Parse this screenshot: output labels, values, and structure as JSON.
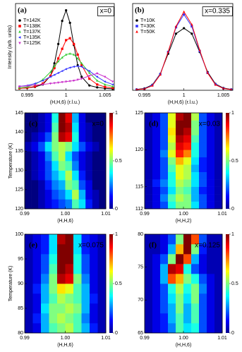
{
  "chart_data": [
    {
      "type": "scatter",
      "panel_label": "(a)",
      "annotation": "x=0",
      "xlabel": "(H,H,6) (r.l.u.)",
      "ylabel": "Intensity (arb. units)",
      "x": [
        0.994,
        0.995,
        0.996,
        0.997,
        0.998,
        0.9985,
        0.999,
        0.9995,
        1.0,
        1.0005,
        1.001,
        1.0015,
        1.002,
        1.003,
        1.004,
        1.005,
        1.006
      ],
      "xlim": [
        0.9935,
        1.0062
      ],
      "xticks": [
        0.995,
        1,
        1.005
      ],
      "ylim": [
        0,
        900
      ],
      "series": [
        {
          "name": "T=142K",
          "color": "#000000",
          "marker": "circle",
          "values": [
            20,
            25,
            35,
            60,
            150,
            280,
            480,
            720,
            830,
            700,
            470,
            260,
            140,
            50,
            30,
            20,
            15
          ]
        },
        {
          "name": "T=138K",
          "color": "#ff0000",
          "marker": "square",
          "values": [
            20,
            25,
            40,
            70,
            150,
            230,
            330,
            430,
            520,
            540,
            480,
            370,
            260,
            120,
            60,
            35,
            25
          ]
        },
        {
          "name": "T=137K",
          "color": "#33cc33",
          "marker": "triangle-up",
          "values": [
            25,
            35,
            60,
            110,
            190,
            250,
            300,
            340,
            370,
            380,
            370,
            330,
            280,
            180,
            100,
            60,
            40
          ]
        },
        {
          "name": "T=135K",
          "color": "#3333ff",
          "marker": "triangle-left",
          "values": [
            40,
            50,
            70,
            100,
            140,
            160,
            180,
            200,
            220,
            235,
            245,
            250,
            245,
            200,
            140,
            90,
            60
          ]
        },
        {
          "name": "T=125K",
          "color": "#cc33cc",
          "marker": "triangle-down",
          "values": [
            40,
            45,
            55,
            60,
            70,
            75,
            80,
            85,
            90,
            95,
            100,
            110,
            120,
            150,
            175,
            140,
            90
          ]
        }
      ]
    },
    {
      "type": "scatter",
      "panel_label": "(b)",
      "annotation": "x=0.335",
      "xlabel": "(H,H,6) (r.l.u.)",
      "x": [
        0.994,
        0.995,
        0.996,
        0.997,
        0.998,
        0.999,
        1.0,
        1.001,
        1.002,
        1.003,
        1.004,
        1.005,
        1.006
      ],
      "xlim": [
        0.9935,
        1.0062
      ],
      "xticks": [
        0.995,
        1,
        1.005
      ],
      "ylim": [
        0,
        950
      ],
      "series": [
        {
          "name": "T=10K",
          "color": "#000000",
          "marker": "circle",
          "values": [
            10,
            20,
            60,
            180,
            400,
            620,
            680,
            620,
            420,
            200,
            70,
            25,
            10
          ]
        },
        {
          "name": "T=30K",
          "color": "#3333ff",
          "marker": "square",
          "values": [
            8,
            15,
            55,
            175,
            420,
            690,
            830,
            700,
            430,
            190,
            65,
            20,
            8
          ]
        },
        {
          "name": "T=50K",
          "color": "#ff0000",
          "marker": "triangle-up",
          "values": [
            8,
            15,
            50,
            170,
            420,
            700,
            860,
            720,
            440,
            190,
            60,
            20,
            8
          ]
        }
      ]
    },
    {
      "type": "heatmap",
      "panel_label": "(c)",
      "annotation": "x=0",
      "xlabel": "(H,H,6)",
      "ylabel": "Temperature (K)",
      "xlim": [
        0.99,
        1.01
      ],
      "xticks": [
        0.99,
        {
          "value": 1,
          "label": "1.00"
        },
        1.01
      ],
      "ylim": [
        120,
        145
      ],
      "yticks": [
        120,
        125,
        130,
        135,
        140,
        145
      ],
      "zlim": [
        0,
        1
      ],
      "cbar_ticks": [
        0,
        0.5,
        1
      ],
      "z": [
        [
          0,
          0,
          0.05,
          0.1,
          0.15,
          0.2,
          0.25,
          0.45,
          0.35,
          0.15,
          0.05,
          0
        ],
        [
          0,
          0,
          0.05,
          0.1,
          0.2,
          0.25,
          0.35,
          0.55,
          0.3,
          0.1,
          0.05,
          0
        ],
        [
          0,
          0,
          0.05,
          0.15,
          0.25,
          0.3,
          0.5,
          0.45,
          0.2,
          0.1,
          0,
          0
        ],
        [
          0,
          0.05,
          0.1,
          0.2,
          0.3,
          0.4,
          0.55,
          0.35,
          0.15,
          0.05,
          0,
          0
        ],
        [
          0,
          0.05,
          0.1,
          0.2,
          0.35,
          0.5,
          0.45,
          0.25,
          0.1,
          0.05,
          0,
          0
        ],
        [
          0,
          0.05,
          0.1,
          0.25,
          0.45,
          0.55,
          0.35,
          0.2,
          0.1,
          0.05,
          0,
          0
        ],
        [
          0.05,
          0.1,
          0.2,
          0.35,
          0.5,
          0.55,
          0.5,
          0.35,
          0.2,
          0.1,
          0.05,
          0
        ],
        [
          0,
          0.05,
          0.1,
          0.2,
          0.5,
          0.95,
          0.9,
          0.4,
          0.1,
          0.05,
          0,
          0
        ],
        [
          0,
          0,
          0.05,
          0.1,
          0.45,
          1,
          0.95,
          0.35,
          0.1,
          0.05,
          0,
          0
        ],
        [
          0,
          0,
          0.05,
          0.1,
          0.4,
          1,
          0.9,
          0.3,
          0.1,
          0,
          0,
          0
        ]
      ]
    },
    {
      "type": "heatmap",
      "panel_label": "(d)",
      "annotation": "x=0.03",
      "xlabel": "(H,H,2)",
      "xlim": [
        0.99,
        1.01
      ],
      "xticks": [
        0.99,
        {
          "value": 1,
          "label": "1.00"
        },
        1.01
      ],
      "ylim": [
        112,
        125
      ],
      "yticks": [
        112,
        115,
        120,
        125
      ],
      "zlim": [
        0,
        1
      ],
      "cbar_ticks": [
        0,
        0.5,
        1
      ],
      "z": [
        [
          0.05,
          0.1,
          0.2,
          0.4,
          0.5,
          0.5,
          0.35,
          0.2,
          0.1,
          0.05
        ],
        [
          0.05,
          0.1,
          0.25,
          0.45,
          0.55,
          0.5,
          0.3,
          0.2,
          0.1,
          0.05
        ],
        [
          0.05,
          0.1,
          0.2,
          0.35,
          0.5,
          0.45,
          0.3,
          0.15,
          0.1,
          0.05
        ],
        [
          0.05,
          0.15,
          0.25,
          0.4,
          0.55,
          0.5,
          0.35,
          0.2,
          0.1,
          0.05
        ],
        [
          0.05,
          0.1,
          0.2,
          0.4,
          0.6,
          0.55,
          0.35,
          0.2,
          0.1,
          0.05
        ],
        [
          0.05,
          0.1,
          0.2,
          0.45,
          0.6,
          0.55,
          0.3,
          0.15,
          0.1,
          0.05
        ],
        [
          0.05,
          0.1,
          0.2,
          0.5,
          0.7,
          0.6,
          0.35,
          0.15,
          0.1,
          0.05
        ],
        [
          0.05,
          0.1,
          0.25,
          0.6,
          0.85,
          0.75,
          0.4,
          0.2,
          0.1,
          0.05
        ],
        [
          0.05,
          0.1,
          0.2,
          0.55,
          0.9,
          0.85,
          0.4,
          0.2,
          0.1,
          0.05
        ],
        [
          0.05,
          0.1,
          0.2,
          0.6,
          0.95,
          0.9,
          0.45,
          0.2,
          0.1,
          0.05
        ],
        [
          0.05,
          0.1,
          0.2,
          0.65,
          1,
          0.95,
          0.5,
          0.2,
          0.1,
          0.05
        ],
        [
          0.05,
          0.1,
          0.2,
          0.6,
          1,
          1,
          0.5,
          0.2,
          0.1,
          0.05
        ],
        [
          0.05,
          0.1,
          0.2,
          0.6,
          0.95,
          1,
          0.55,
          0.2,
          0.1,
          0.05
        ]
      ]
    },
    {
      "type": "heatmap",
      "panel_label": "(e)",
      "annotation": "x=0.075",
      "xlabel": "(H,H,6)",
      "ylabel": "Temperature (K)",
      "xlim": [
        0.99,
        1.01
      ],
      "xticks": [
        0.99,
        {
          "value": 1,
          "label": "1.00"
        },
        1.01
      ],
      "ylim": [
        80,
        100
      ],
      "yticks": [
        80,
        85,
        90,
        95,
        100
      ],
      "zlim": [
        0,
        1
      ],
      "cbar_ticks": [
        0,
        0.5,
        1
      ],
      "z": [
        [
          0.05,
          0.1,
          0.3,
          0.45,
          0.5,
          0.55,
          0.45,
          0.3,
          0.15,
          0.05
        ],
        [
          0.05,
          0.15,
          0.3,
          0.5,
          0.55,
          0.5,
          0.45,
          0.25,
          0.1,
          0.05
        ],
        [
          0.05,
          0.1,
          0.35,
          0.5,
          0.5,
          0.55,
          0.5,
          0.3,
          0.1,
          0.05
        ],
        [
          0.05,
          0.1,
          0.3,
          0.45,
          0.55,
          0.5,
          0.45,
          0.3,
          0.15,
          0.05
        ],
        [
          0.05,
          0.15,
          0.3,
          0.5,
          0.65,
          0.6,
          0.45,
          0.3,
          0.1,
          0.05
        ],
        [
          0.05,
          0.1,
          0.25,
          0.5,
          0.95,
          0.9,
          0.5,
          0.25,
          0.1,
          0.05
        ],
        [
          0.05,
          0.1,
          0.2,
          0.45,
          1,
          0.95,
          0.4,
          0.2,
          0.1,
          0.05
        ],
        [
          0.05,
          0.1,
          0.2,
          0.4,
          1,
          1,
          0.4,
          0.2,
          0.1,
          0.05
        ],
        [
          0.05,
          0.1,
          0.15,
          0.35,
          1,
          1,
          0.35,
          0.15,
          0.1,
          0.05
        ],
        [
          0.05,
          0.1,
          0.15,
          0.35,
          0.95,
          1,
          0.35,
          0.15,
          0.1,
          0.05
        ]
      ]
    },
    {
      "type": "heatmap",
      "panel_label": "(f)",
      "annotation": "x=0.125",
      "xlabel": "(H,H,6)",
      "xlim": [
        0.99,
        1.01
      ],
      "xticks": [
        0.99,
        {
          "value": 1,
          "label": "1.00"
        },
        1.01
      ],
      "ylim": [
        65,
        80
      ],
      "yticks": [
        65,
        70,
        75,
        80
      ],
      "zlim": [
        0,
        1
      ],
      "cbar_ticks": [
        0,
        0.5,
        1
      ],
      "z": [
        [
          0.05,
          0.1,
          0.15,
          0.25,
          0.45,
          0.35,
          0.4,
          0.2,
          0.1,
          0.05
        ],
        [
          0.05,
          0.1,
          0.15,
          0.3,
          0.45,
          0.3,
          0.45,
          0.2,
          0.1,
          0.05
        ],
        [
          0.05,
          0.1,
          0.2,
          0.3,
          0.5,
          0.3,
          0.45,
          0.2,
          0.1,
          0.05
        ],
        [
          0.05,
          0.1,
          0.2,
          0.35,
          0.5,
          0.35,
          0.5,
          0.2,
          0.1,
          0.05
        ],
        [
          0.05,
          0.1,
          0.2,
          0.4,
          0.55,
          0.4,
          0.5,
          0.25,
          0.1,
          0.05
        ],
        [
          0.05,
          0.1,
          0.3,
          0.8,
          0.7,
          0.5,
          0.4,
          0.2,
          0.1,
          0.05
        ],
        [
          0.05,
          0.1,
          0.3,
          0.95,
          0.9,
          0.4,
          0.2,
          0.1,
          0.05,
          0.05
        ],
        [
          0.05,
          0.1,
          0.2,
          0.5,
          1,
          0.8,
          0.3,
          0.1,
          0.05,
          0.05
        ],
        [
          0.05,
          0.05,
          0.1,
          0.3,
          0.7,
          1,
          0.5,
          0.15,
          0.05,
          0.05
        ],
        [
          0.05,
          0.05,
          0.1,
          0.2,
          0.5,
          1,
          0.8,
          0.2,
          0.05,
          0.05
        ]
      ]
    }
  ]
}
